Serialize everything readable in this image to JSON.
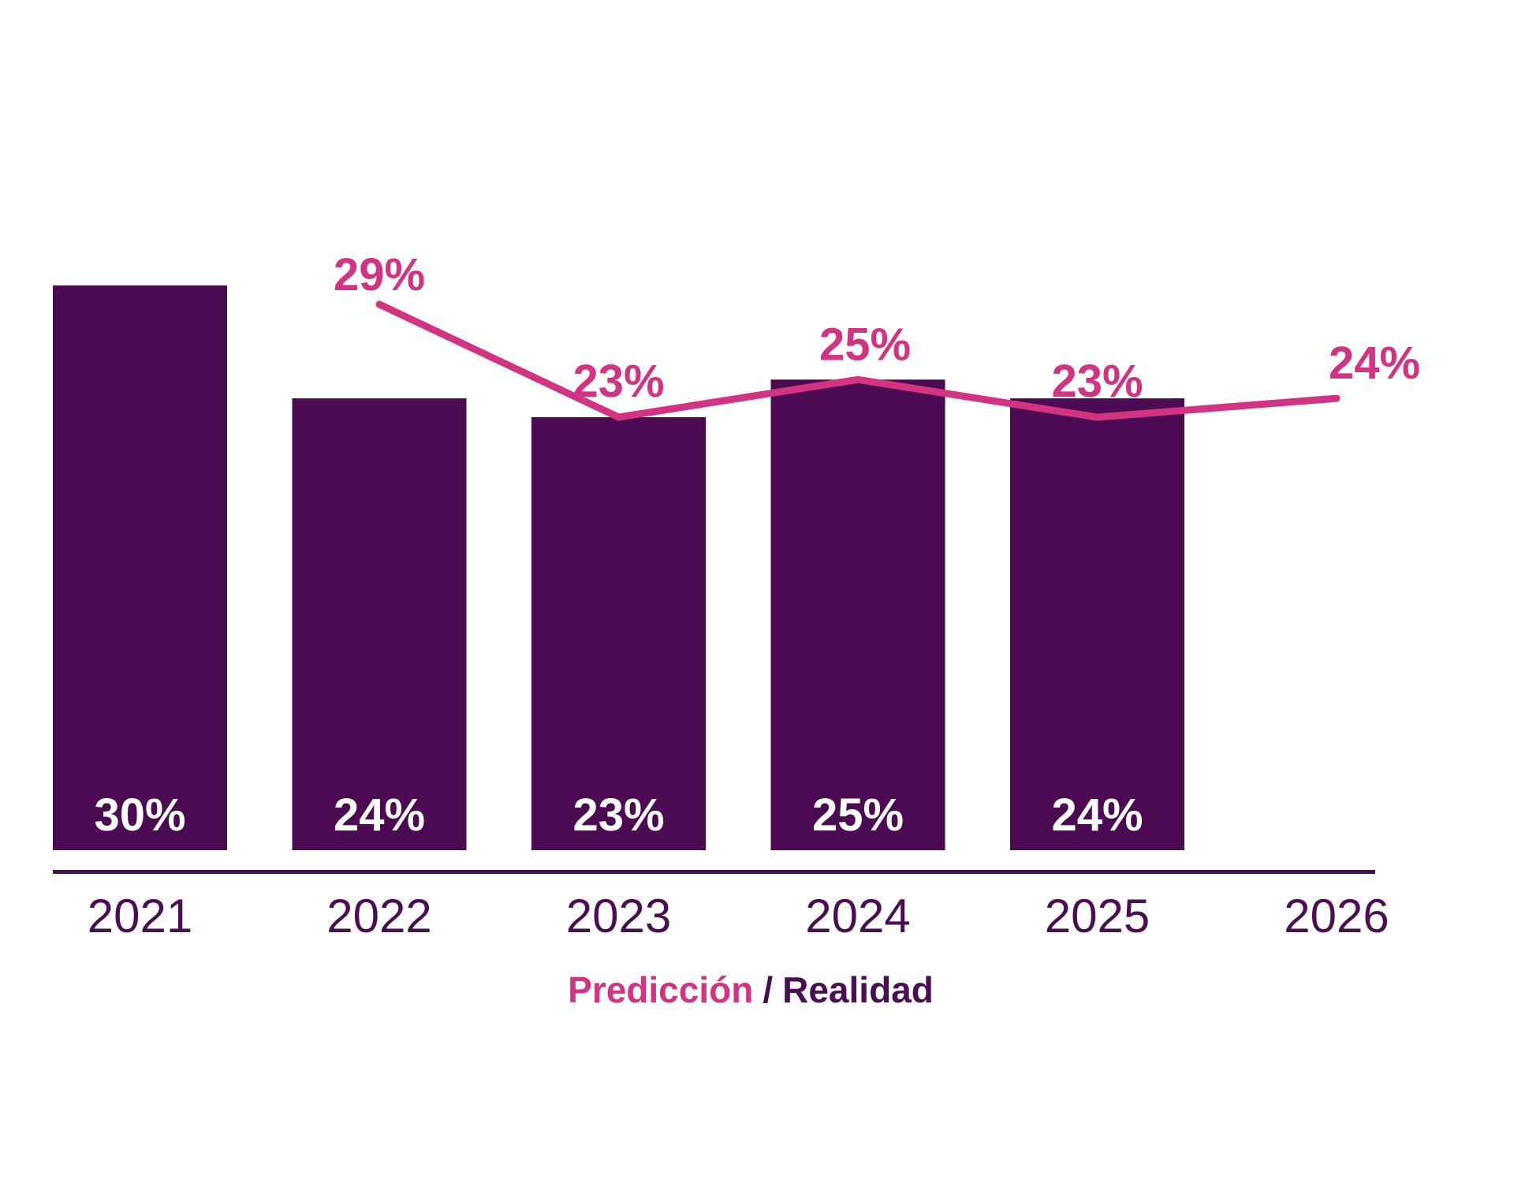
{
  "page": {
    "background_color": "#FFFFFF"
  },
  "chart_data": {
    "type": "bar",
    "subtype": "bar-with-line-overlay",
    "title": "",
    "xlabel": "",
    "ylabel": "",
    "categories": [
      "2021",
      "2022",
      "2023",
      "2024",
      "2025",
      "2026"
    ],
    "series": [
      {
        "name": "Realidad",
        "type": "bar",
        "color": "#4B0A52",
        "values": [
          30,
          24,
          23,
          25,
          24,
          null
        ],
        "label_position": "inside-bottom",
        "label_color": "#FFFFFF"
      },
      {
        "name": "Predicción",
        "type": "line",
        "color": "#D23383",
        "values": [
          null,
          29,
          23,
          25,
          23,
          24
        ],
        "label_position": "above-line",
        "label_color": "#D23383"
      }
    ],
    "value_suffix": "%",
    "ylim": [
      0,
      30
    ],
    "grid": false,
    "y_axis_visible": false,
    "x_axis_line_color": "#4A0E52",
    "tick_label_color": "#4A0E52",
    "legend_position": "bottom-center"
  },
  "legend": {
    "prediction_label": "Predicción",
    "separator": "/",
    "reality_label": "Realidad",
    "prediction_color": "#D23383",
    "reality_color": "#4A0E52"
  }
}
